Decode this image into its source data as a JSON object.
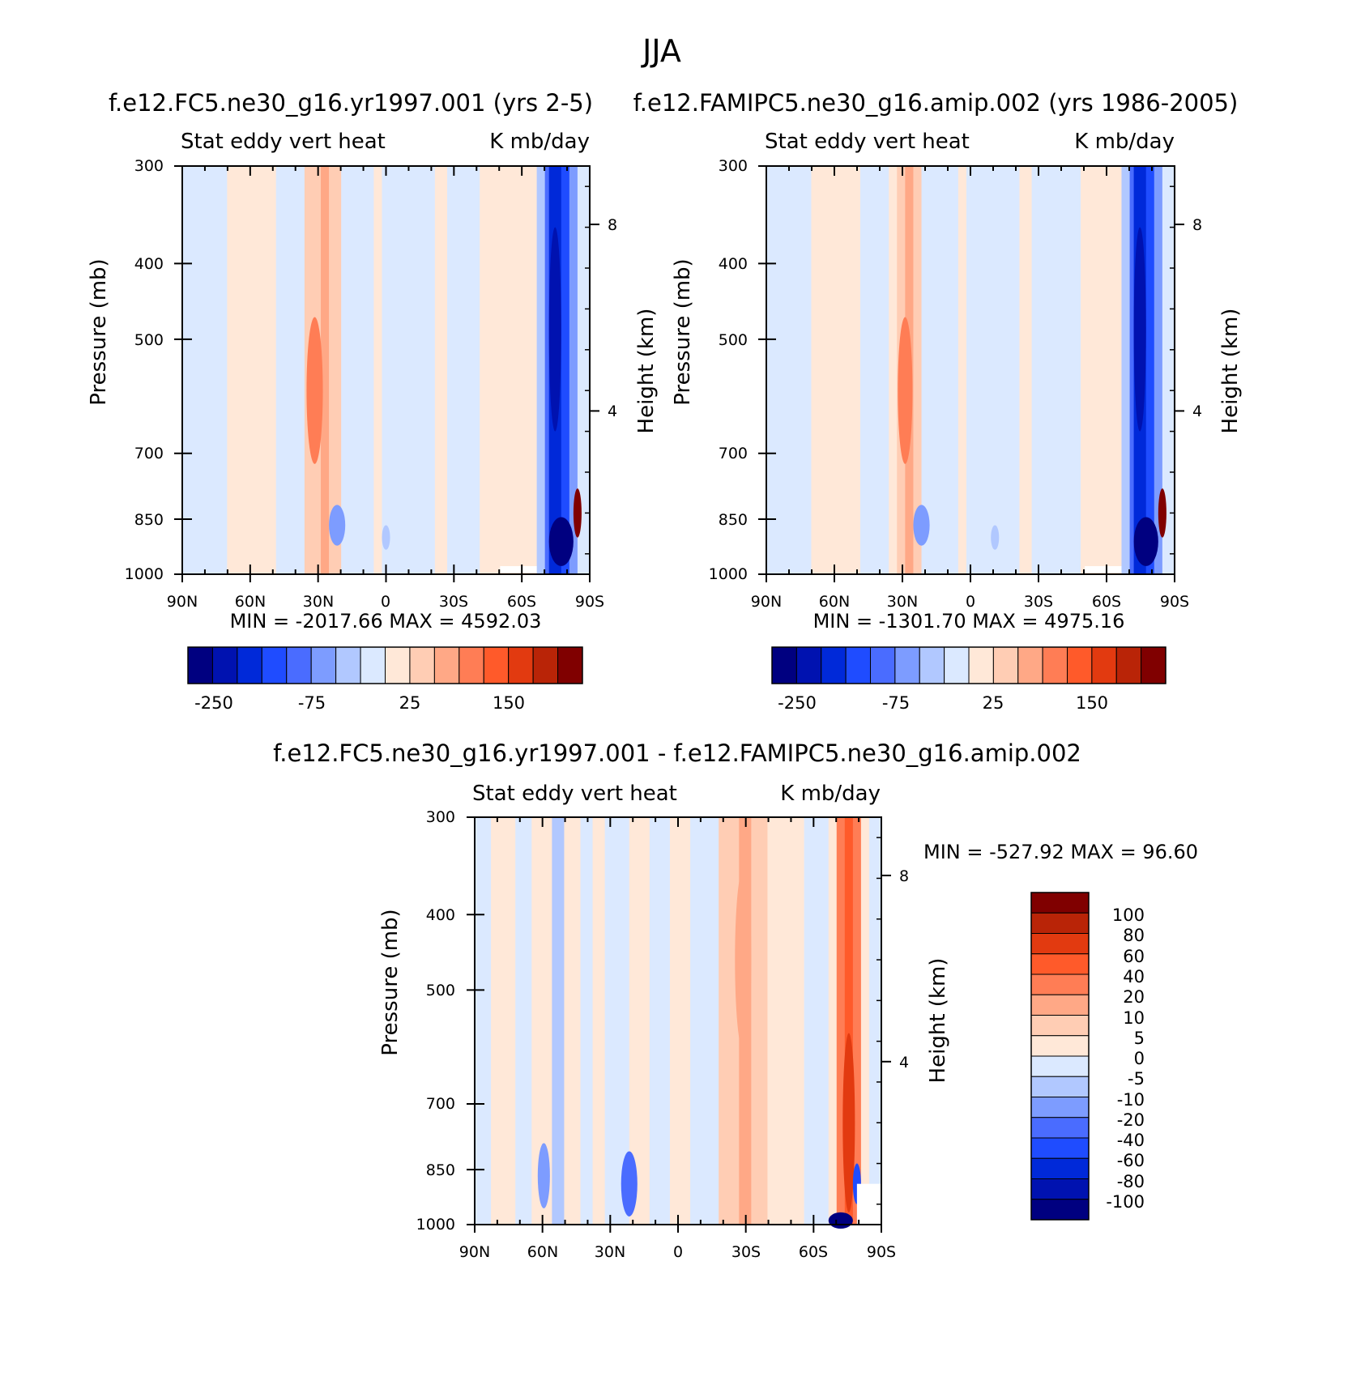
{
  "title": "JJA",
  "colors": {
    "frame": "#000000",
    "full_palette": [
      "#000080",
      "#0012b0",
      "#0029d9",
      "#1f4cff",
      "#4a6cff",
      "#7d9cff",
      "#b1c8ff",
      "#dbe9ff",
      "#ffe8d8",
      "#ffcdb4",
      "#ffa886",
      "#ff7d55",
      "#ff5a2a",
      "#e23a10",
      "#b92407",
      "#800000"
    ],
    "diff_palette": [
      "#000080",
      "#0012b0",
      "#0029d9",
      "#1f4cff",
      "#4a6cff",
      "#7d9cff",
      "#b1c8ff",
      "#dbe9ff",
      "#ffe8d8",
      "#ffcdb4",
      "#ffa886",
      "#ff7d55",
      "#ff5a2a",
      "#e23a10",
      "#b92407",
      "#800000"
    ]
  },
  "chart_data": [
    {
      "id": "model1",
      "type": "heatmap",
      "title": "f.e12.FC5.ne30_g16.yr1997.001 (yrs 2-5)",
      "subtitle_left": "Stat eddy vert heat",
      "subtitle_right": "K mb/day",
      "ylabel": "Pressure (mb)",
      "ylabel_right": "Height (km)",
      "x_ticks": [
        "90N",
        "60N",
        "30N",
        "0",
        "30S",
        "60S",
        "90S"
      ],
      "y_ticks": [
        "300",
        "400",
        "500",
        "700",
        "850",
        "1000"
      ],
      "y_right_ticks": [
        "8",
        "4"
      ],
      "xlim": [
        90,
        -90
      ],
      "ylim": [
        1000,
        300
      ],
      "minmax_text": "MIN = -2017.66   MAX = 4592.03",
      "colorbar_labels": [
        "-250",
        "-75",
        "25",
        "150"
      ]
    },
    {
      "id": "model2",
      "type": "heatmap",
      "title": "f.e12.FAMIPC5.ne30_g16.amip.002 (yrs 1986-2005)",
      "subtitle_left": "Stat eddy vert heat",
      "subtitle_right": "K mb/day",
      "ylabel": "Pressure (mb)",
      "ylabel_right": "Height (km)",
      "x_ticks": [
        "90N",
        "60N",
        "30N",
        "0",
        "30S",
        "60S",
        "90S"
      ],
      "y_ticks": [
        "300",
        "400",
        "500",
        "700",
        "850",
        "1000"
      ],
      "y_right_ticks": [
        "8",
        "4"
      ],
      "xlim": [
        90,
        -90
      ],
      "ylim": [
        1000,
        300
      ],
      "minmax_text": "MIN = -1301.70   MAX = 4975.16",
      "colorbar_labels": [
        "-250",
        "-75",
        "25",
        "150"
      ]
    },
    {
      "id": "difference",
      "type": "heatmap",
      "title": "f.e12.FC5.ne30_g16.yr1997.001 - f.e12.FAMIPC5.ne30_g16.amip.002",
      "subtitle_left": "Stat eddy vert heat",
      "subtitle_right": "K mb/day",
      "ylabel": "Pressure (mb)",
      "ylabel_right": "Height (km)",
      "x_ticks": [
        "90N",
        "60N",
        "30N",
        "0",
        "30S",
        "60S",
        "90S"
      ],
      "y_ticks": [
        "300",
        "400",
        "500",
        "700",
        "850",
        "1000"
      ],
      "y_right_ticks": [
        "8",
        "4"
      ],
      "xlim": [
        90,
        -90
      ],
      "ylim": [
        1000,
        300
      ],
      "minmax_text": "MIN = -527.92   MAX =  96.60",
      "colorbar_labels": [
        "100",
        "80",
        "60",
        "40",
        "20",
        "10",
        "5",
        "0",
        "-5",
        "-10",
        "-20",
        "-40",
        "-60",
        "-80",
        "-100"
      ]
    }
  ]
}
